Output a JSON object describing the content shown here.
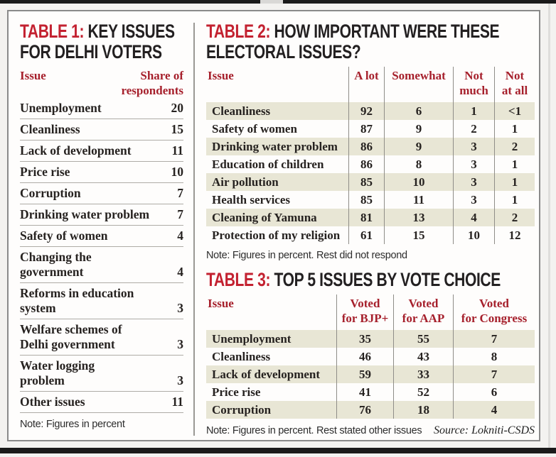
{
  "meta": {
    "accent_red": "#c32130",
    "header_red": "#a6202c",
    "row_shade": "#e8e6d5",
    "text_black": "#262220"
  },
  "chart_data": [
    {
      "type": "table",
      "title_label": "TABLE 1:",
      "title": "KEY ISSUES\nFOR DELHI VOTERS",
      "columns": [
        "Issue",
        "Share of\nrespondents"
      ],
      "rows": [
        [
          "Unemployment",
          "20"
        ],
        [
          "Cleanliness",
          "15"
        ],
        [
          "Lack of development",
          "11"
        ],
        [
          "Price rise",
          "10"
        ],
        [
          "Corruption",
          "7"
        ],
        [
          "Drinking water problem",
          "7"
        ],
        [
          "Safety of women",
          "4"
        ],
        [
          "Changing the\ngovernment",
          "4"
        ],
        [
          "Reforms in education\nsystem",
          "3"
        ],
        [
          "Welfare schemes of\nDelhi government",
          "3"
        ],
        [
          "Water logging\nproblem",
          "3"
        ],
        [
          "Other issues",
          "11"
        ]
      ],
      "note": "Note: Figures in percent"
    },
    {
      "type": "table",
      "title_label": "TABLE 2:",
      "title": "HOW IMPORTANT WERE THESE\nELECTORAL ISSUES?",
      "columns": [
        "Issue",
        "A lot",
        "Somewhat",
        "Not\nmuch",
        "Not\nat all"
      ],
      "rows": [
        [
          "Cleanliness",
          "92",
          "6",
          "1",
          "<1"
        ],
        [
          "Safety of women",
          "87",
          "9",
          "2",
          "1"
        ],
        [
          "Drinking water problem",
          "86",
          "9",
          "3",
          "2"
        ],
        [
          "Education of children",
          "86",
          "8",
          "3",
          "1"
        ],
        [
          "Air pollution",
          "85",
          "10",
          "3",
          "1"
        ],
        [
          "Health services",
          "85",
          "11",
          "3",
          "1"
        ],
        [
          "Cleaning of Yamuna",
          "81",
          "13",
          "4",
          "2"
        ],
        [
          "Protection of my religion",
          "61",
          "15",
          "10",
          "12"
        ]
      ],
      "note": "Note: Figures in percent. Rest did not respond"
    },
    {
      "type": "table",
      "title_label": "TABLE 3:",
      "title": "TOP 5 ISSUES BY VOTE CHOICE",
      "columns": [
        "Issue",
        "Voted\nfor BJP+",
        "Voted\nfor AAP",
        "Voted\nfor Congress"
      ],
      "rows": [
        [
          "Unemployment",
          "35",
          "55",
          "7"
        ],
        [
          "Cleanliness",
          "46",
          "43",
          "8"
        ],
        [
          "Lack of development",
          "59",
          "33",
          "7"
        ],
        [
          "Price rise",
          "41",
          "52",
          "6"
        ],
        [
          "Corruption",
          "76",
          "18",
          "4"
        ]
      ],
      "note": "Note: Figures in percent. Rest stated other issues",
      "source": "Source: Lokniti-CSDS"
    }
  ]
}
